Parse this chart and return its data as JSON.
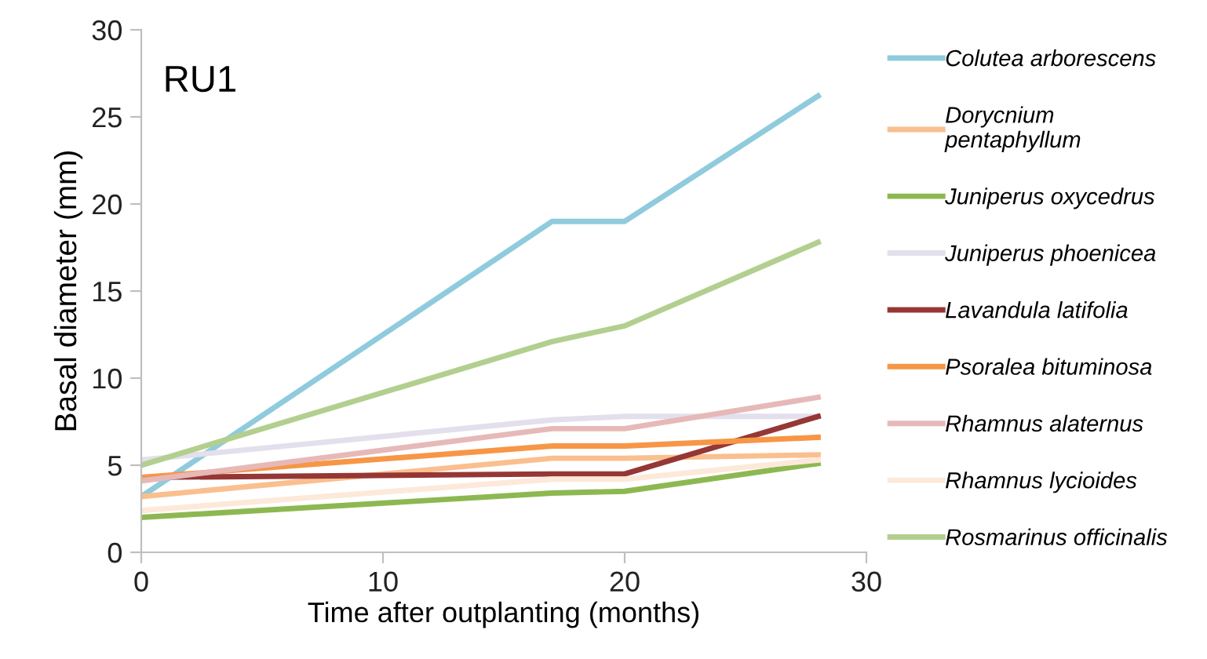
{
  "chart_data": {
    "type": "line",
    "title": "RU1",
    "xlabel": "Time after outplanting (months)",
    "ylabel": "Basal diameter (mm)",
    "x": [
      0,
      17,
      20,
      28
    ],
    "xlim": [
      0,
      30
    ],
    "xticks": [
      0,
      10,
      20,
      30
    ],
    "ylim": [
      0,
      30
    ],
    "yticks": [
      0,
      5,
      10,
      15,
      20,
      25,
      30
    ],
    "grid": false,
    "legend": "right",
    "marker": "none",
    "line_style": "solid",
    "series": [
      {
        "name": "Colutea arborescens",
        "color": "#8fcbdc",
        "values": [
          3.2,
          19.0,
          19.0,
          26.2
        ]
      },
      {
        "name": "Dorycnium\npentaphyllum",
        "color": "#fabf8f",
        "values": [
          3.2,
          5.4,
          5.4,
          5.6
        ]
      },
      {
        "name": "Juniperus oxycedrus",
        "color": "#8db851",
        "values": [
          2.0,
          3.4,
          3.5,
          5.1
        ]
      },
      {
        "name": "Juniperus phoenicea",
        "color": "#e4dfec",
        "values": [
          5.3,
          7.6,
          7.8,
          7.8
        ]
      },
      {
        "name": "Lavandula latifolia",
        "color": "#953735",
        "values": [
          4.3,
          4.5,
          4.5,
          7.8
        ]
      },
      {
        "name": "Psoralea bituminosa",
        "color": "#f79646",
        "values": [
          4.3,
          6.1,
          6.1,
          6.6
        ]
      },
      {
        "name": "Rhamnus alaternus",
        "color": "#e6b9b8",
        "values": [
          4.1,
          7.1,
          7.1,
          8.9
        ]
      },
      {
        "name": "Rhamnus lycioides",
        "color": "#fde9d9",
        "values": [
          2.4,
          4.2,
          4.2,
          5.3
        ]
      },
      {
        "name": "Rosmarinus officinalis",
        "color": "#b3cf8f",
        "values": [
          5.0,
          12.1,
          13.0,
          17.8
        ]
      }
    ]
  }
}
